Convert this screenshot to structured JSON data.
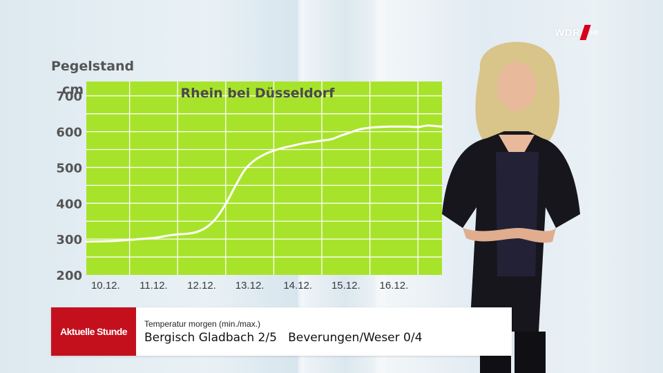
{
  "chart_data": {
    "type": "line",
    "title": "Rhein bei Düsseldorf",
    "ylabel": "Pegelstand",
    "yunit": "cm",
    "ylim": [
      200,
      740
    ],
    "yticks": [
      200,
      300,
      400,
      500,
      600,
      700
    ],
    "xtick_labels": [
      "10.12.",
      "11.12.",
      "12.12.",
      "13.12.",
      "14.12.",
      "15.12.",
      "16.12."
    ],
    "xlim_days": [
      9.6,
      17.0
    ],
    "grid": true,
    "background_color": "#a8e32b",
    "line_color": "#ffffff",
    "series": [
      {
        "x": [
          9.6,
          10.0,
          10.3,
          10.6,
          10.9,
          11.1,
          11.3,
          11.5,
          11.7,
          11.9,
          12.1,
          12.3,
          12.5,
          12.7,
          12.9,
          13.1,
          13.3,
          13.5,
          13.7,
          13.9,
          14.1,
          14.3,
          14.5,
          14.7,
          14.9,
          15.1,
          15.3,
          15.5,
          15.7,
          15.9,
          16.1,
          16.3,
          16.5,
          16.7,
          16.9,
          17.0
        ],
        "y": [
          293,
          294,
          296,
          299,
          302,
          305,
          310,
          313,
          315,
          320,
          333,
          358,
          398,
          448,
          494,
          520,
          536,
          547,
          555,
          561,
          567,
          571,
          575,
          579,
          589,
          598,
          607,
          611,
          613,
          614,
          614,
          614,
          613,
          617,
          615,
          614
        ]
      }
    ]
  },
  "logo": {
    "text": "WDR",
    "suffix": "HD"
  },
  "lower_third": {
    "show": "Aktuelle Stunde",
    "subtitle": "Temperatur morgen (min./max.)",
    "headline": "Bergisch Gladbach 2/5   Beverungen/Weser 0/4"
  },
  "colors": {
    "brand_red": "#c4101d",
    "wdr_red": "#d6001c"
  }
}
